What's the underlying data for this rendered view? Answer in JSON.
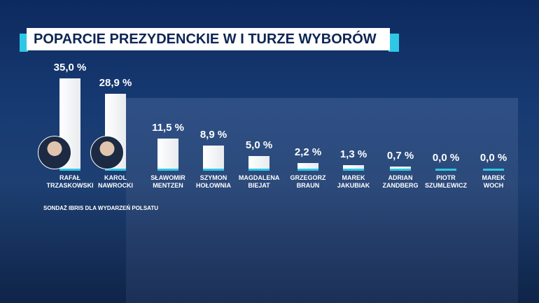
{
  "chart_data": {
    "type": "bar",
    "title": "POPARCIE PREZYDENCKIE W I TURZE WYBORÓW",
    "categories": [
      "RAFAŁ TRZASKOWSKI",
      "KAROL NAWROCKI",
      "SŁAWOMIR MENTZEN",
      "SZYMON HOŁOWNIA",
      "MAGDALENA BIEJAT",
      "GRZEGORZ BRAUN",
      "MAREK JAKUBIAK",
      "ADRIAN ZANDBERG",
      "PIOTR SZUMLEWICZ",
      "MAREK WOCH"
    ],
    "values": [
      35.0,
      28.9,
      11.5,
      8.9,
      5.0,
      2.2,
      1.3,
      0.7,
      0.0,
      0.0
    ],
    "value_labels": [
      "35,0 %",
      "28,9 %",
      "11,5 %",
      "8,9 %",
      "5,0 %",
      "2,2 %",
      "1,3 %",
      "0,7 %",
      "0,0 %",
      "0,0 %"
    ],
    "color": "#e8eaee",
    "note": "SONDAŻ IBRIS DLA WYDARZEŃ POLSATU"
  }
}
